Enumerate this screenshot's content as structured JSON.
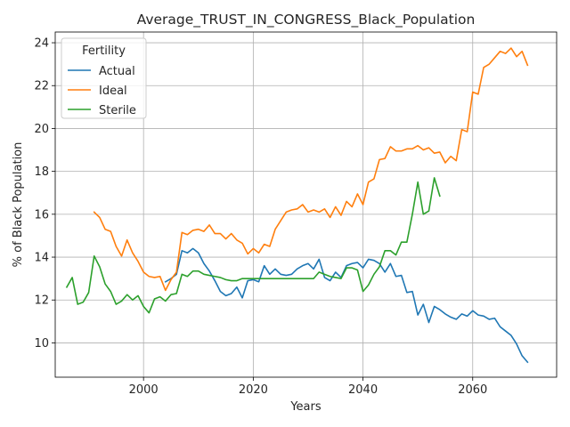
{
  "chart_data": {
    "type": "line",
    "title": "Average_TRUST_IN_CONGRESS_Black_Population",
    "xlabel": "Years",
    "ylabel": "% of Black Population",
    "xlim": [
      1983.9,
      2075.3
    ],
    "ylim": [
      8.4,
      24.5
    ],
    "xticks": [
      2000,
      2020,
      2040,
      2060
    ],
    "yticks": [
      10,
      12,
      14,
      16,
      18,
      20,
      22,
      24
    ],
    "grid": true,
    "legend": {
      "title": "Fertility",
      "placement": "top-left"
    },
    "series": [
      {
        "name": "Actual",
        "color": "#1f77b4",
        "x": [
          2004,
          2005,
          2006,
          2007,
          2008,
          2009,
          2010,
          2011,
          2012,
          2013,
          2014,
          2015,
          2016,
          2017,
          2018,
          2019,
          2020,
          2021,
          2022,
          2023,
          2024,
          2025,
          2026,
          2027,
          2028,
          2029,
          2030,
          2031,
          2032,
          2033,
          2034,
          2035,
          2036,
          2037,
          2038,
          2039,
          2040,
          2041,
          2042,
          2043,
          2044,
          2045,
          2046,
          2047,
          2048,
          2049,
          2050,
          2051,
          2052,
          2053,
          2054,
          2055,
          2056,
          2057,
          2058,
          2059,
          2060,
          2061,
          2062,
          2063,
          2064,
          2065,
          2066,
          2067,
          2068,
          2069,
          2070
        ],
        "values": [
          12.85,
          13.0,
          13.2,
          14.3,
          14.2,
          14.4,
          14.2,
          13.7,
          13.35,
          12.9,
          12.4,
          12.2,
          12.3,
          12.6,
          12.1,
          12.9,
          12.95,
          12.85,
          13.6,
          13.2,
          13.45,
          13.2,
          13.15,
          13.2,
          13.45,
          13.6,
          13.7,
          13.45,
          13.9,
          13.05,
          12.9,
          13.3,
          13.05,
          13.6,
          13.7,
          13.75,
          13.5,
          13.9,
          13.85,
          13.7,
          13.3,
          13.7,
          13.1,
          13.15,
          12.35,
          12.4,
          11.3,
          11.8,
          10.95,
          11.7,
          11.55,
          11.35,
          11.2,
          11.1,
          11.35,
          11.25,
          11.5,
          11.3,
          11.25,
          11.1,
          11.15,
          10.75,
          10.55,
          10.35,
          9.95,
          9.4,
          9.1
        ]
      },
      {
        "name": "Ideal",
        "color": "#ff7f0e",
        "x": [
          1991,
          1992,
          1993,
          1994,
          1995,
          1996,
          1997,
          1998,
          1999,
          2000,
          2001,
          2002,
          2003,
          2004,
          2005,
          2006,
          2007,
          2008,
          2009,
          2010,
          2011,
          2012,
          2013,
          2014,
          2015,
          2016,
          2017,
          2018,
          2019,
          2020,
          2021,
          2022,
          2023,
          2024,
          2025,
          2026,
          2027,
          2028,
          2029,
          2030,
          2031,
          2032,
          2033,
          2034,
          2035,
          2036,
          2037,
          2038,
          2039,
          2040,
          2041,
          2042,
          2043,
          2044,
          2045,
          2046,
          2047,
          2048,
          2049,
          2050,
          2051,
          2052,
          2053,
          2054,
          2055,
          2056,
          2057,
          2058,
          2059,
          2060,
          2061,
          2062,
          2063,
          2064,
          2065,
          2066,
          2067,
          2068,
          2069,
          2070
        ],
        "values": [
          16.1,
          15.85,
          15.3,
          15.2,
          14.5,
          14.05,
          14.8,
          14.2,
          13.8,
          13.3,
          13.1,
          13.05,
          13.1,
          12.45,
          12.95,
          13.3,
          15.15,
          15.05,
          15.25,
          15.3,
          15.2,
          15.5,
          15.1,
          15.1,
          14.85,
          15.1,
          14.8,
          14.65,
          14.15,
          14.4,
          14.2,
          14.6,
          14.5,
          15.3,
          15.7,
          16.1,
          16.2,
          16.25,
          16.45,
          16.1,
          16.2,
          16.1,
          16.25,
          15.85,
          16.35,
          15.95,
          16.6,
          16.35,
          16.95,
          16.45,
          17.5,
          17.65,
          18.55,
          18.6,
          19.15,
          18.95,
          18.95,
          19.05,
          19.05,
          19.2,
          19.0,
          19.1,
          18.85,
          18.9,
          18.4,
          18.7,
          18.5,
          19.95,
          19.85,
          21.7,
          21.6,
          22.85,
          23.0,
          23.3,
          23.6,
          23.5,
          23.75,
          23.35,
          23.6,
          22.95
        ]
      },
      {
        "name": "Sterile",
        "color": "#2ca02c",
        "x": [
          1986,
          1987,
          1988,
          1989,
          1990,
          1991,
          1992,
          1993,
          1994,
          1995,
          1996,
          1997,
          1998,
          1999,
          2000,
          2001,
          2002,
          2003,
          2004,
          2005,
          2006,
          2007,
          2008,
          2009,
          2010,
          2011,
          2012,
          2013,
          2014,
          2015,
          2016,
          2017,
          2018,
          2019,
          2020,
          2021,
          2022,
          2023,
          2024,
          2025,
          2026,
          2027,
          2028,
          2029,
          2030,
          2031,
          2032,
          2033,
          2034,
          2035,
          2036,
          2037,
          2038,
          2039,
          2040,
          2041,
          2042,
          2043,
          2044,
          2045,
          2046,
          2047,
          2048,
          2049,
          2050,
          2051,
          2052,
          2053,
          2054
        ],
        "values": [
          12.6,
          13.05,
          11.8,
          11.9,
          12.35,
          14.05,
          13.55,
          12.75,
          12.4,
          11.8,
          11.95,
          12.25,
          12.0,
          12.2,
          11.7,
          11.4,
          12.05,
          12.15,
          11.95,
          12.25,
          12.3,
          13.2,
          13.1,
          13.35,
          13.35,
          13.2,
          13.15,
          13.1,
          13.05,
          12.95,
          12.9,
          12.9,
          13.0,
          13.0,
          13.0,
          13.0,
          13.0,
          13.0,
          13.0,
          13.0,
          13.0,
          13.0,
          13.0,
          13.0,
          13.0,
          13.0,
          13.3,
          13.2,
          13.1,
          13.05,
          13.0,
          13.5,
          13.5,
          13.4,
          12.4,
          12.7,
          13.2,
          13.55,
          14.3,
          14.3,
          14.1,
          14.7,
          14.7,
          16.0,
          17.5,
          16.0,
          16.15,
          17.7,
          16.85
        ]
      }
    ]
  }
}
